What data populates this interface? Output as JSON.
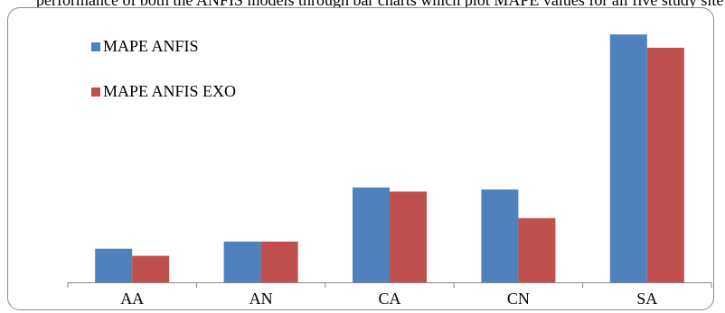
{
  "page": {
    "top_text": "performance of both the ANFIS models through bar charts which plot MAPE values for all five study sites"
  },
  "colors": {
    "series_1": "#4f81bd",
    "series_2": "#c0504d",
    "axis": "#868686",
    "frame": "#8c8c8c"
  },
  "chart_data": {
    "type": "bar",
    "categories": [
      "AA",
      "AN",
      "CA",
      "CN",
      "SA"
    ],
    "series": [
      {
        "name": "MAPE ANFIS",
        "values": [
          3.3,
          4.0,
          9.3,
          9.1,
          24.3
        ]
      },
      {
        "name": "MAPE ANFIS EXO",
        "values": [
          2.6,
          4.0,
          8.9,
          6.3,
          23.0
        ]
      }
    ],
    "title": "",
    "xlabel": "",
    "ylabel": "",
    "ylim": [
      0,
      26
    ],
    "grid": false,
    "legend": "top-left",
    "y_axis_shown": false
  }
}
